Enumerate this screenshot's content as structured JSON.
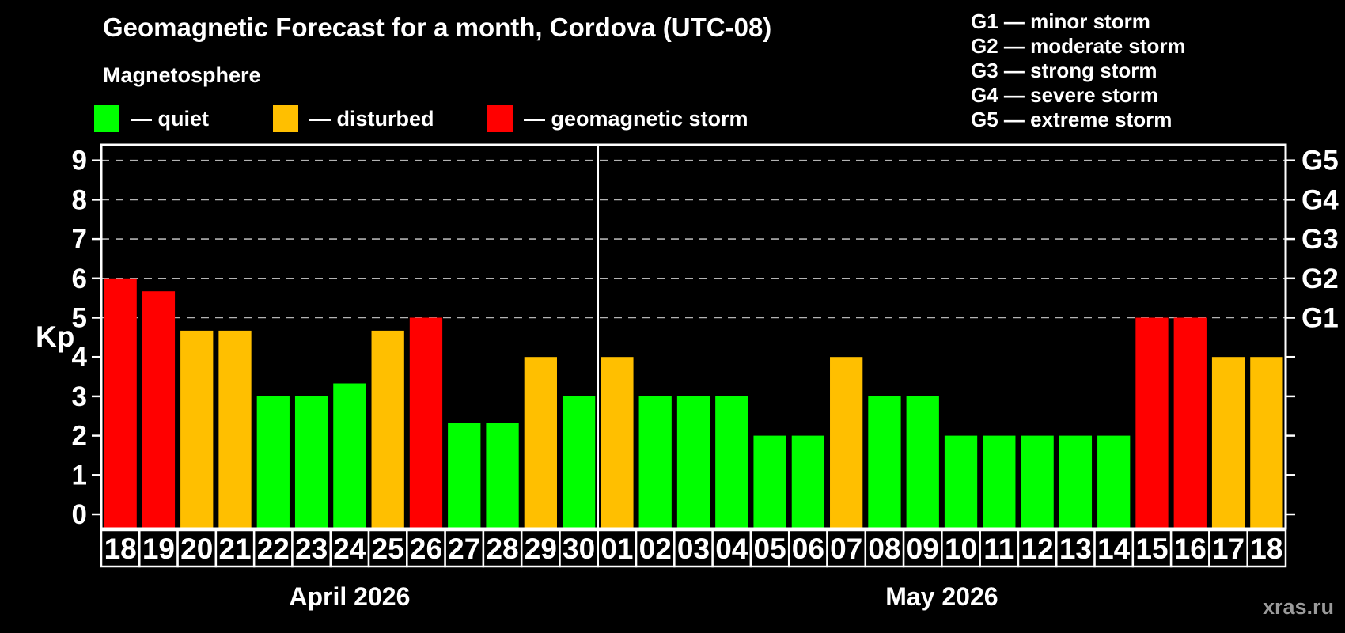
{
  "header": {
    "title": "Geomagnetic Forecast for a month, Cordova (UTC-08)",
    "subtitle": "Magnetosphere"
  },
  "legend": {
    "items": [
      {
        "key": "quiet",
        "label": "— quiet",
        "color": "#00ff00"
      },
      {
        "key": "disturbed",
        "label": "— disturbed",
        "color": "#ffbf00"
      },
      {
        "key": "storm",
        "label": "— geomagnetic storm",
        "color": "#ff0000"
      }
    ]
  },
  "g_legend": {
    "lines": [
      "G1 — minor storm",
      "G2 — moderate storm",
      "G3 — strong storm",
      "G4 — severe storm",
      "G5 — extreme storm"
    ]
  },
  "watermark": "xras.ru",
  "chart_data": {
    "type": "bar",
    "title": "Geomagnetic Forecast for a month, Cordova (UTC-08)",
    "ylabel": "Kp",
    "ylim": [
      0,
      9
    ],
    "y_ticks": [
      "0",
      "1",
      "2",
      "3",
      "4",
      "5",
      "6",
      "7",
      "8",
      "9"
    ],
    "gridlines_at": [
      5,
      6,
      7,
      8,
      9
    ],
    "right_axis": [
      {
        "kp": 5,
        "label": "G1"
      },
      {
        "kp": 6,
        "label": "G2"
      },
      {
        "kp": 7,
        "label": "G3"
      },
      {
        "kp": 8,
        "label": "G4"
      },
      {
        "kp": 9,
        "label": "G5"
      }
    ],
    "status_colors": {
      "quiet": "#00ff00",
      "disturbed": "#ffbf00",
      "storm": "#ff0000"
    },
    "legend_position": "top-left",
    "grid": "dashed horizontal at storm levels only",
    "groups": [
      {
        "month": "April 2026",
        "days": [
          "18",
          "19",
          "20",
          "21",
          "22",
          "23",
          "24",
          "25",
          "26",
          "27",
          "28",
          "29",
          "30"
        ],
        "values": [
          6,
          5.67,
          4.67,
          4.67,
          3,
          3,
          3.33,
          4.67,
          5,
          2.33,
          2.33,
          4,
          3
        ],
        "statuses": [
          "storm",
          "storm",
          "disturbed",
          "disturbed",
          "quiet",
          "quiet",
          "quiet",
          "disturbed",
          "storm",
          "quiet",
          "quiet",
          "disturbed",
          "quiet"
        ]
      },
      {
        "month": "May 2026",
        "days": [
          "01",
          "02",
          "03",
          "04",
          "05",
          "06",
          "07",
          "08",
          "09",
          "10",
          "11",
          "12",
          "13",
          "14",
          "15",
          "16",
          "17",
          "18"
        ],
        "values": [
          4,
          3,
          3,
          3,
          2,
          2,
          4,
          3,
          3,
          2,
          2,
          2,
          2,
          2,
          5,
          5,
          4,
          4
        ],
        "statuses": [
          "disturbed",
          "quiet",
          "quiet",
          "quiet",
          "quiet",
          "quiet",
          "disturbed",
          "quiet",
          "quiet",
          "quiet",
          "quiet",
          "quiet",
          "quiet",
          "quiet",
          "storm",
          "storm",
          "disturbed",
          "disturbed"
        ]
      }
    ]
  }
}
